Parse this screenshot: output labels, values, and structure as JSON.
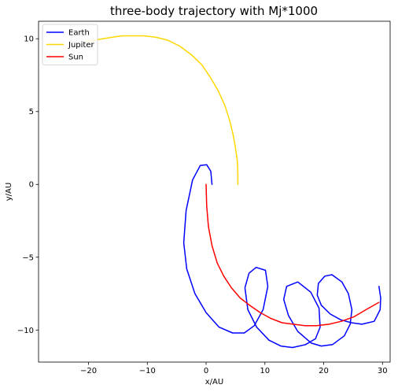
{
  "chart_data": {
    "type": "line",
    "title": "three-body trajectory with Mj*1000",
    "xlabel": "x/AU",
    "ylabel": "y/AU",
    "xlim": [
      -28.5,
      31.3
    ],
    "ylim": [
      -12.2,
      11.2
    ],
    "xticks": [
      -20,
      -10,
      0,
      10,
      20,
      30
    ],
    "xtick_labels": [
      "−20",
      "−10",
      "0",
      "10",
      "20",
      "30"
    ],
    "yticks": [
      10,
      5,
      0,
      -5,
      -10
    ],
    "ytick_labels": [
      "10",
      "5",
      "0",
      "−5",
      "−10"
    ],
    "grid": false,
    "legend_position": "upper-left",
    "series": [
      {
        "name": "Earth",
        "color": "#0000ff",
        "points": [
          [
            1.0,
            0.0
          ],
          [
            0.8,
            0.9
          ],
          [
            0.1,
            1.35
          ],
          [
            -1.0,
            1.3
          ],
          [
            -2.3,
            0.3
          ],
          [
            -3.4,
            -1.8
          ],
          [
            -3.8,
            -4.0
          ],
          [
            -3.3,
            -5.8
          ],
          [
            -1.9,
            -7.5
          ],
          [
            0.0,
            -8.8
          ],
          [
            2.2,
            -9.8
          ],
          [
            4.5,
            -10.2
          ],
          [
            6.5,
            -10.2
          ],
          [
            8.2,
            -9.7
          ],
          [
            9.7,
            -8.6
          ],
          [
            10.5,
            -7.0
          ],
          [
            10.1,
            -5.9
          ],
          [
            8.5,
            -5.7
          ],
          [
            7.3,
            -6.1
          ],
          [
            6.6,
            -7.1
          ],
          [
            7.1,
            -8.6
          ],
          [
            8.6,
            -9.8
          ],
          [
            10.7,
            -10.7
          ],
          [
            12.7,
            -11.1
          ],
          [
            14.7,
            -11.2
          ],
          [
            16.9,
            -11.0
          ],
          [
            18.6,
            -10.6
          ],
          [
            19.4,
            -9.8
          ],
          [
            19.2,
            -8.5
          ],
          [
            17.8,
            -7.4
          ],
          [
            15.6,
            -6.7
          ],
          [
            13.7,
            -7.0
          ],
          [
            13.2,
            -7.9
          ],
          [
            14.0,
            -9.0
          ],
          [
            15.6,
            -10.1
          ],
          [
            17.9,
            -10.9
          ],
          [
            19.6,
            -11.1
          ],
          [
            21.5,
            -11.0
          ],
          [
            23.5,
            -10.4
          ],
          [
            24.5,
            -9.6
          ],
          [
            24.8,
            -8.6
          ],
          [
            24.2,
            -7.5
          ],
          [
            23.1,
            -6.7
          ],
          [
            21.4,
            -6.2
          ],
          [
            20.2,
            -6.3
          ],
          [
            19.1,
            -6.8
          ],
          [
            18.9,
            -7.6
          ],
          [
            19.6,
            -8.3
          ],
          [
            21.1,
            -8.9
          ],
          [
            22.9,
            -9.3
          ],
          [
            24.7,
            -9.5
          ],
          [
            26.5,
            -9.6
          ],
          [
            28.6,
            -9.4
          ],
          [
            29.6,
            -8.6
          ],
          [
            29.7,
            -7.8
          ],
          [
            29.4,
            -7.0
          ]
        ]
      },
      {
        "name": "Jupiter",
        "color": "#ffd700",
        "points": [
          [
            5.4,
            0.0
          ],
          [
            5.4,
            0.8
          ],
          [
            5.3,
            1.6
          ],
          [
            5.0,
            2.5
          ],
          [
            4.6,
            3.4
          ],
          [
            4.0,
            4.4
          ],
          [
            3.2,
            5.4
          ],
          [
            2.1,
            6.4
          ],
          [
            0.8,
            7.3
          ],
          [
            -0.7,
            8.2
          ],
          [
            -2.5,
            8.9
          ],
          [
            -4.5,
            9.5
          ],
          [
            -6.5,
            9.9
          ],
          [
            -8.5,
            10.1
          ],
          [
            -10.6,
            10.2
          ],
          [
            -12.5,
            10.2
          ],
          [
            -14.3,
            10.2
          ],
          [
            -16.0,
            10.1
          ],
          [
            -17.6,
            10.0
          ],
          [
            -19.0,
            9.9
          ],
          [
            -20.5,
            9.8
          ]
        ]
      },
      {
        "name": "Sun",
        "color": "#ff0000",
        "points": [
          [
            0.0,
            0.0
          ],
          [
            0.1,
            -1.5
          ],
          [
            0.4,
            -2.9
          ],
          [
            1.0,
            -4.2
          ],
          [
            1.9,
            -5.4
          ],
          [
            3.0,
            -6.3
          ],
          [
            4.3,
            -7.1
          ],
          [
            5.8,
            -7.8
          ],
          [
            7.4,
            -8.3
          ],
          [
            9.2,
            -8.8
          ],
          [
            11.0,
            -9.2
          ],
          [
            12.9,
            -9.5
          ],
          [
            14.8,
            -9.6
          ],
          [
            16.8,
            -9.7
          ],
          [
            18.8,
            -9.7
          ],
          [
            20.9,
            -9.6
          ],
          [
            23.0,
            -9.4
          ],
          [
            25.1,
            -9.1
          ],
          [
            27.2,
            -8.6
          ],
          [
            29.4,
            -8.1
          ]
        ]
      }
    ]
  }
}
